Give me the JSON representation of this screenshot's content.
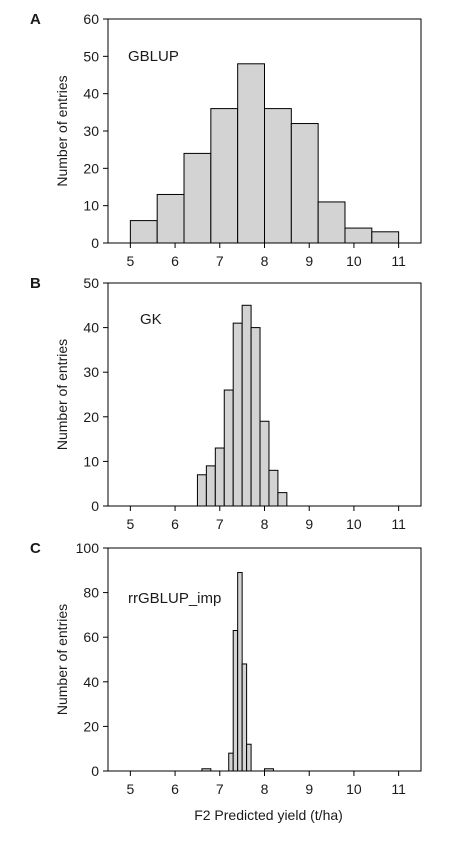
{
  "chart_data": [
    {
      "type": "bar",
      "panel_letter": "A",
      "annotation": "GBLUP",
      "ylabel": "Number of entries",
      "xlabel": "",
      "xlim": [
        4.5,
        11.5
      ],
      "ylim": [
        0,
        60
      ],
      "xticks": [
        5,
        6,
        7,
        8,
        9,
        10,
        11
      ],
      "yticks": [
        0,
        10,
        20,
        30,
        40,
        50,
        60
      ],
      "bin_edges": [
        5.0,
        5.6,
        6.2,
        6.8,
        7.4,
        8.0,
        8.6,
        9.2,
        9.8,
        10.4,
        11.0
      ],
      "values": [
        6,
        13,
        24,
        36,
        48,
        36,
        32,
        11,
        4,
        3
      ],
      "bar_color": "#d3d3d3"
    },
    {
      "type": "bar",
      "panel_letter": "B",
      "annotation": "GK",
      "ylabel": "Number of entries",
      "xlabel": "",
      "xlim": [
        4.5,
        11.5
      ],
      "ylim": [
        0,
        50
      ],
      "xticks": [
        5,
        6,
        7,
        8,
        9,
        10,
        11
      ],
      "yticks": [
        0,
        10,
        20,
        30,
        40,
        50
      ],
      "bin_edges": [
        6.5,
        6.7,
        6.9,
        7.1,
        7.3,
        7.5,
        7.7,
        7.9,
        8.1,
        8.3,
        8.5,
        8.7
      ],
      "values": [
        7,
        9,
        13,
        26,
        41,
        45,
        40,
        19,
        8,
        3,
        0
      ],
      "bar_color": "#d3d3d3"
    },
    {
      "type": "bar",
      "panel_letter": "C",
      "annotation": "rrGBLUP_imp",
      "ylabel": "Number of entries",
      "xlabel": "F2 Predicted yield (t/ha)",
      "xlim": [
        4.5,
        11.5
      ],
      "ylim": [
        0,
        100
      ],
      "xticks": [
        5,
        6,
        7,
        8,
        9,
        10,
        11
      ],
      "yticks": [
        0,
        20,
        40,
        60,
        80,
        100
      ],
      "bin_edges": [
        6.6,
        6.8,
        7.2,
        7.3,
        7.4,
        7.5,
        7.6,
        7.7,
        8.0,
        8.2
      ],
      "values": [
        1,
        0,
        8,
        63,
        89,
        48,
        12,
        0,
        1
      ],
      "bar_color": "#d3d3d3"
    }
  ]
}
